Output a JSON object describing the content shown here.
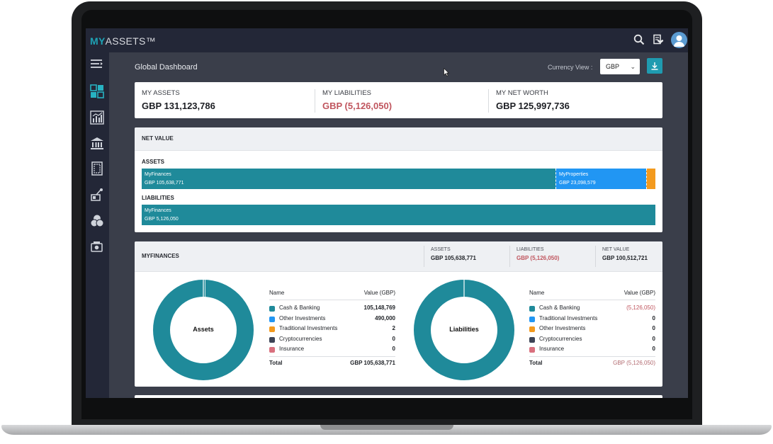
{
  "app": {
    "logo_my": "MY",
    "logo_assets": "ASSETS™"
  },
  "header": {
    "page_title": "Global Dashboard",
    "currency_label": "Currency View :",
    "currency_value": "GBP"
  },
  "summary": {
    "assets_label": "MY ASSETS",
    "assets_value": "GBP 131,123,786",
    "liabilities_label": "MY LIABILITIES",
    "liabilities_value": "GBP (5,126,050)",
    "networth_label": "MY NET WORTH",
    "networth_value": "GBP 125,997,736"
  },
  "net_value": {
    "title": "NET VALUE",
    "assets_label": "ASSETS",
    "liabilities_label": "LIABILITIES",
    "assets_bars": [
      {
        "name": "MyFinances",
        "value": "GBP 105,638,771",
        "amount": 105638771,
        "color": "#1f8a9a"
      },
      {
        "name": "MyProperties",
        "value": "GBP 23,098,579",
        "amount": 23098579,
        "color": "#2196f3"
      },
      {
        "name": "",
        "value": "",
        "amount": 2386436,
        "color": "#f39a1e"
      }
    ],
    "liabilities_bars": [
      {
        "name": "MyFinances",
        "value": "GBP 5,126,050",
        "amount": 5126050,
        "color": "#1f8a9a"
      }
    ]
  },
  "myfinances": {
    "title": "MYFINANCES",
    "stats": [
      {
        "label": "ASSETS",
        "value": "GBP 105,638,771",
        "negative": false
      },
      {
        "label": "LIABILITIES",
        "value": "GBP (5,126,050)",
        "negative": true
      },
      {
        "label": "NET VALUE",
        "value": "GBP 100,512,721",
        "negative": false
      }
    ],
    "assets_chart": {
      "center_label": "Assets",
      "header_name": "Name",
      "header_value": "Value (GBP)",
      "rows": [
        {
          "name": "Cash & Banking",
          "value": "105,148,769",
          "color": "#1f8a9a"
        },
        {
          "name": "Other Investments",
          "value": "490,000",
          "color": "#2196f3"
        },
        {
          "name": "Traditional Investments",
          "value": "2",
          "color": "#f39a1e"
        },
        {
          "name": "Cryptocurrencies",
          "value": "0",
          "color": "#3d4456"
        },
        {
          "name": "Insurance",
          "value": "0",
          "color": "#d9707e"
        }
      ],
      "total_label": "Total",
      "total_value": "GBP 105,638,771"
    },
    "liabilities_chart": {
      "center_label": "Liabilities",
      "header_name": "Name",
      "header_value": "Value (GBP)",
      "rows": [
        {
          "name": "Cash & Banking",
          "value": "(5,126,050)",
          "color": "#1f8a9a",
          "negative": true
        },
        {
          "name": "Traditional Investments",
          "value": "0",
          "color": "#2196f3"
        },
        {
          "name": "Other Investments",
          "value": "0",
          "color": "#f39a1e"
        },
        {
          "name": "Cryptocurrencies",
          "value": "0",
          "color": "#3d4456"
        },
        {
          "name": "Insurance",
          "value": "0",
          "color": "#d9707e"
        }
      ],
      "total_label": "Total",
      "total_value": "GBP (5,126,050)"
    }
  },
  "icons": {
    "top": [
      "search-icon",
      "document-heart-icon",
      "user-avatar-icon"
    ],
    "sidebar": [
      "menu-collapse-icon",
      "dashboard-icon",
      "finances-chart-icon",
      "properties-bank-icon",
      "documents-icon",
      "valuables-icon",
      "collectibles-icon",
      "insurance-icon"
    ]
  },
  "colors": {
    "accent": "#1f9bb0",
    "topbar": "#232737",
    "negative": "#c0555e"
  }
}
